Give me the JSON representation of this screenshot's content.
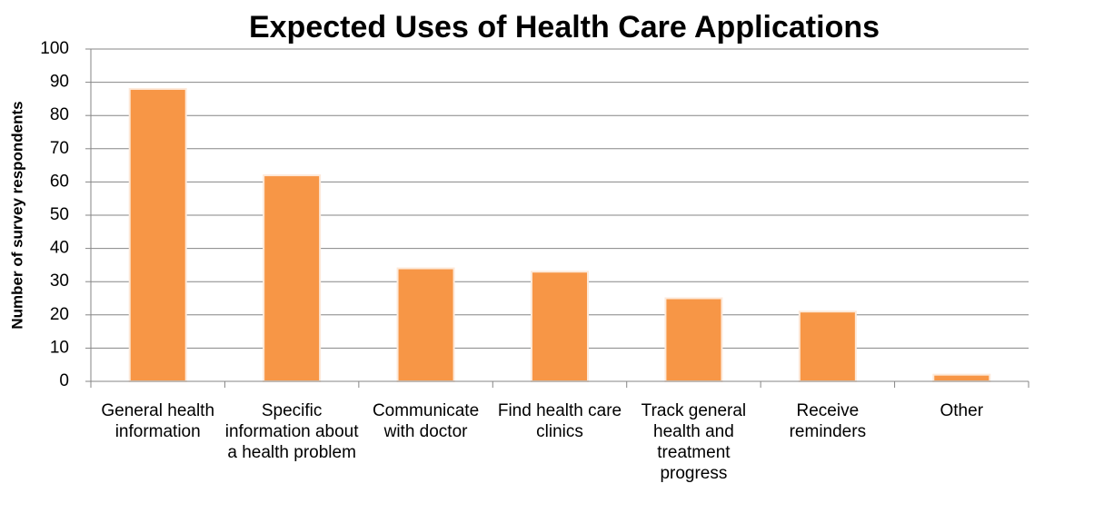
{
  "chart_data": {
    "type": "bar",
    "title": "Expected Uses of Health Care Applications",
    "y_label": "Number of survey respondents",
    "categories": [
      "General health information",
      "Specific information about a health problem",
      "Communicate with doctor",
      "Find health care clinics",
      "Track general health and treatment progress",
      "Receive reminders",
      "Other"
    ],
    "values": [
      88,
      62,
      34,
      33,
      25,
      21,
      2
    ],
    "color": "#f79646",
    "ylim": [
      0,
      100
    ],
    "yticks": [
      0,
      10,
      20,
      30,
      40,
      50,
      60,
      70,
      80,
      90,
      100
    ],
    "grid": true
  }
}
